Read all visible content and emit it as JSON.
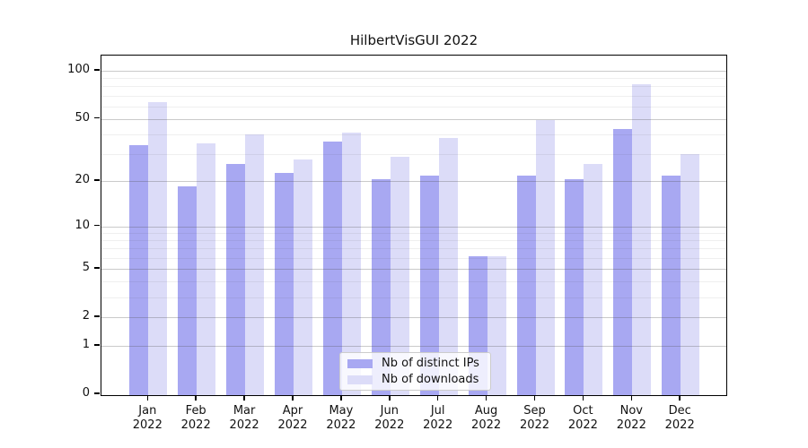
{
  "title": "HilbertVisGUI 2022",
  "chart_data": {
    "type": "bar",
    "scale": "log10(1+x)",
    "title": "HilbertVisGUI 2022",
    "categories": [
      "Jan",
      "Feb",
      "Mar",
      "Apr",
      "May",
      "Jun",
      "Jul",
      "Aug",
      "Sep",
      "Oct",
      "Nov",
      "Dec"
    ],
    "year_label": "2022",
    "series": [
      {
        "name": "Nb of distinct IPs",
        "color": "#a8a8f2",
        "values": [
          33,
          18,
          25,
          22,
          35,
          20,
          21,
          6,
          21,
          20,
          42,
          21
        ]
      },
      {
        "name": "Nb of downloads",
        "color": "#dcdcf8",
        "values": [
          62,
          34,
          39,
          27,
          40,
          28,
          37,
          6,
          48,
          25,
          80,
          29
        ]
      }
    ],
    "y_ticks": [
      0,
      1,
      2,
      5,
      10,
      20,
      50,
      100
    ],
    "y_minor_gridlines": [
      3,
      4,
      6,
      7,
      8,
      9,
      30,
      40,
      60,
      70,
      80,
      90
    ],
    "ylim": [
      0,
      125
    ],
    "grid": true,
    "legend_position": "lower-center"
  },
  "legend": {
    "items": [
      "Nb of distinct IPs",
      "Nb of downloads"
    ]
  },
  "colors": {
    "bar_dark": "#a8a8f2",
    "bar_light": "#dcdcf8",
    "axis": "#000000",
    "grid_major": "#c9c9c9",
    "grid_minor": "#efefef"
  }
}
